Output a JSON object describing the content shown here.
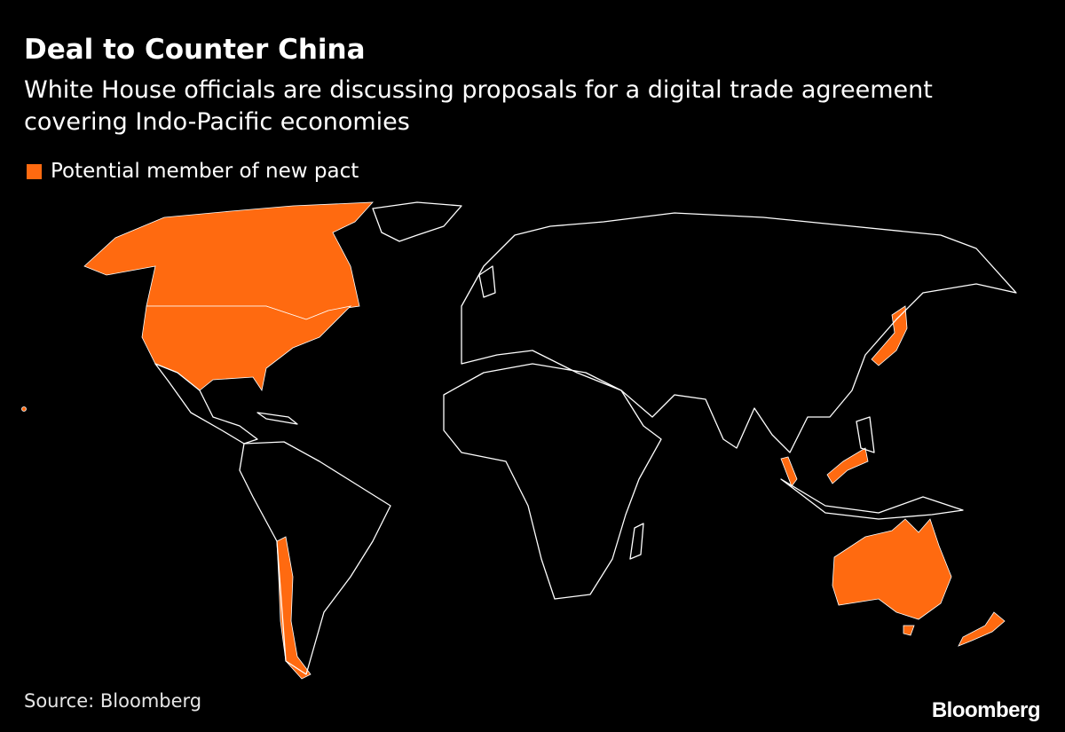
{
  "header": {
    "title": "Deal to Counter China",
    "subtitle": "White House officials are discussing proposals for a digital trade agreement covering Indo-Pacific economies"
  },
  "legend": {
    "label": "Potential member of new pact",
    "color": "#ff6a10"
  },
  "map": {
    "highlighted_countries": [
      "Canada",
      "United States",
      "Chile",
      "Japan",
      "Malaysia",
      "Singapore",
      "Australia",
      "New Zealand"
    ],
    "base_color": "#000000",
    "outline_color": "#ffffff"
  },
  "footer": {
    "source": "Source: Bloomberg",
    "logo": "Bloomberg"
  }
}
